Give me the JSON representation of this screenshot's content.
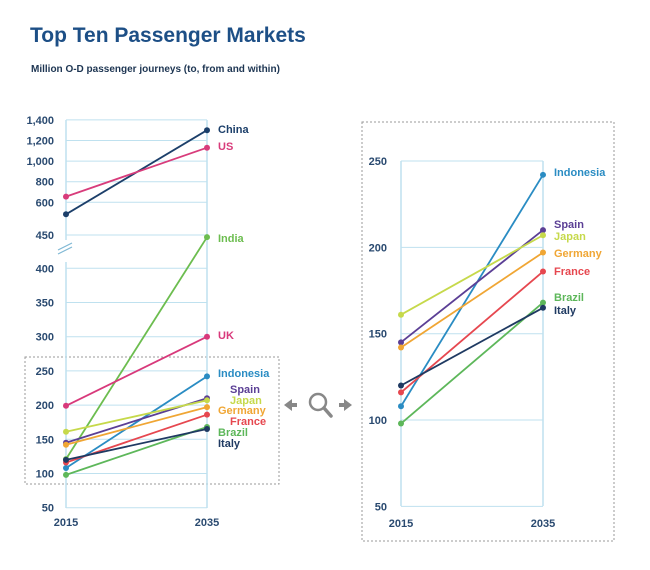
{
  "title": "Top Ten Passenger Markets",
  "subtitle": "Million O-D passenger journeys (to, from and within)",
  "zoom_control": {
    "icons": [
      "arrow-left-icon",
      "magnifier-icon",
      "arrow-right-icon"
    ]
  },
  "chart_data": [
    {
      "type": "line",
      "panel": "overview",
      "categories": [
        "2015",
        "2035"
      ],
      "y_axis": {
        "broken": true,
        "upper_ticks": [
          "1,400",
          "1,200",
          "1,000",
          "800",
          "600",
          "450"
        ],
        "lower_ticks": [
          "400",
          "350",
          "300",
          "250",
          "200",
          "150",
          "100",
          "50"
        ],
        "ylim": [
          50,
          1400
        ]
      },
      "grid": true,
      "series": [
        {
          "name": "China",
          "color": "#1c3f6a",
          "values": [
            545,
            1300
          ]
        },
        {
          "name": "US",
          "color": "#d83c7b",
          "values": [
            655,
            1130
          ]
        },
        {
          "name": "India",
          "color": "#6cbd4f",
          "values": [
            121,
            440
          ]
        },
        {
          "name": "UK",
          "color": "#d8397b",
          "values": [
            199,
            300
          ]
        },
        {
          "name": "Indonesia",
          "color": "#2a8cc3",
          "values": [
            108,
            242
          ]
        },
        {
          "name": "Spain",
          "color": "#5b3f95",
          "values": [
            145,
            210
          ]
        },
        {
          "name": "Japan",
          "color": "#c6d94b",
          "values": [
            161,
            207
          ]
        },
        {
          "name": "Germany",
          "color": "#f0a634",
          "values": [
            142,
            197
          ]
        },
        {
          "name": "France",
          "color": "#e6474f",
          "values": [
            116,
            186
          ]
        },
        {
          "name": "Brazil",
          "color": "#5db75a",
          "values": [
            98,
            168
          ]
        },
        {
          "name": "Italy",
          "color": "#1f3a62",
          "values": [
            120,
            165
          ]
        }
      ]
    },
    {
      "type": "line",
      "panel": "zoomed",
      "categories": [
        "2015",
        "2035"
      ],
      "y_axis": {
        "ticks": [
          "250",
          "200",
          "150",
          "100",
          "50"
        ],
        "ylim": [
          50,
          250
        ]
      },
      "grid": true,
      "series": [
        {
          "name": "Indonesia",
          "color": "#2a8cc3",
          "values": [
            108,
            242
          ]
        },
        {
          "name": "Spain",
          "color": "#5b3f95",
          "values": [
            145,
            210
          ]
        },
        {
          "name": "Japan",
          "color": "#c6d94b",
          "values": [
            161,
            207
          ]
        },
        {
          "name": "Germany",
          "color": "#f0a634",
          "values": [
            142,
            197
          ]
        },
        {
          "name": "France",
          "color": "#e6474f",
          "values": [
            116,
            186
          ]
        },
        {
          "name": "Brazil",
          "color": "#5db75a",
          "values": [
            98,
            168
          ]
        },
        {
          "name": "Italy",
          "color": "#1f3a62",
          "values": [
            120,
            165
          ]
        }
      ]
    }
  ]
}
